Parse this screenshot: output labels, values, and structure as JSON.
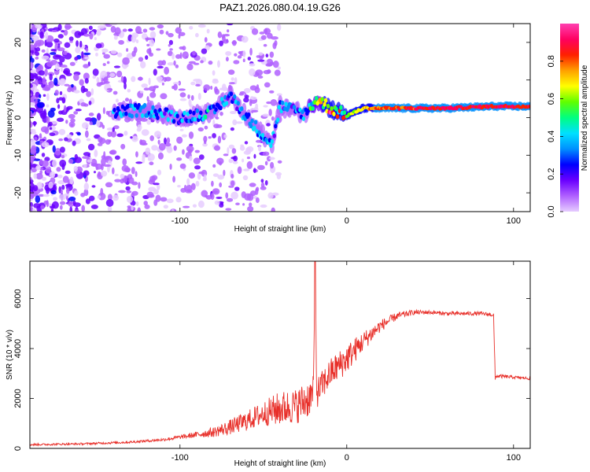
{
  "title": "PAZ1.2026.080.04.19.G26",
  "chart_data": [
    {
      "type": "heatmap",
      "name": "spectrogram",
      "xlabel": "Height of straight line (km)",
      "ylabel": "Frequency (Hz)",
      "xlim": [
        -190,
        110
      ],
      "ylim": [
        -25,
        25
      ],
      "xticks": [
        -100,
        0,
        100
      ],
      "yticks": [
        -20,
        -10,
        0,
        10,
        20
      ],
      "colorbar": {
        "label": "Normalized spectral amplitude",
        "range": [
          0,
          1
        ],
        "ticks": [
          "0.0",
          "0.2",
          "0.4",
          "0.6",
          "0.8"
        ],
        "tick_values": [
          0.0,
          0.2,
          0.4,
          0.6,
          0.8
        ],
        "colors": [
          "#e6ccff",
          "#b060ff",
          "#6a00ff",
          "#0000ff",
          "#0090ff",
          "#00e0ff",
          "#00ff80",
          "#60ff00",
          "#ffff00",
          "#ffa000",
          "#ff2000",
          "#ff0060",
          "#ff40b0"
        ]
      },
      "ridge": [
        {
          "x": -140,
          "f": 1.5,
          "a": 0.3
        },
        {
          "x": -120,
          "f": 2.0,
          "a": 0.35
        },
        {
          "x": -100,
          "f": 0.0,
          "a": 0.3
        },
        {
          "x": -80,
          "f": 1.5,
          "a": 0.35
        },
        {
          "x": -70,
          "f": 6.0,
          "a": 0.3
        },
        {
          "x": -60,
          "f": 0.0,
          "a": 0.35
        },
        {
          "x": -45,
          "f": -7.0,
          "a": 0.3
        },
        {
          "x": -40,
          "f": 3.0,
          "a": 0.3
        },
        {
          "x": -25,
          "f": 1.0,
          "a": 0.3
        },
        {
          "x": -18,
          "f": 5.0,
          "a": 0.5
        },
        {
          "x": -10,
          "f": 2.5,
          "a": 0.7
        },
        {
          "x": 0,
          "f": 0.5,
          "a": 0.6
        },
        {
          "x": 10,
          "f": 2.5,
          "a": 0.8
        },
        {
          "x": 30,
          "f": 2.5,
          "a": 0.9
        },
        {
          "x": 60,
          "f": 2.5,
          "a": 0.95
        },
        {
          "x": 88,
          "f": 3.0,
          "a": 0.95
        },
        {
          "x": 110,
          "f": 3.0,
          "a": 0.95
        }
      ]
    },
    {
      "type": "line",
      "name": "snr",
      "xlabel": "Height of straight line (km)",
      "ylabel": "SNR (10 * v/v)",
      "xlim": [
        -190,
        110
      ],
      "ylim": [
        0,
        7500
      ],
      "xticks": [
        -100,
        0,
        100
      ],
      "yticks": [
        0,
        2000,
        4000,
        6000
      ],
      "color": "#e8302a",
      "series": [
        {
          "name": "SNR",
          "x": [
            -190,
            -160,
            -130,
            -110,
            -100,
            -90,
            -80,
            -70,
            -60,
            -50,
            -40,
            -30,
            -25,
            -20,
            -19,
            -18,
            -10,
            0,
            10,
            20,
            30,
            40,
            50,
            60,
            70,
            80,
            88,
            89,
            90,
            100,
            110
          ],
          "y": [
            150,
            180,
            250,
            350,
            450,
            550,
            650,
            850,
            1100,
            1400,
            1600,
            1700,
            1900,
            2200,
            7500,
            2200,
            3000,
            3600,
            4300,
            4900,
            5300,
            5450,
            5450,
            5400,
            5400,
            5400,
            5350,
            2800,
            2900,
            2850,
            2800
          ],
          "noise": [
            40,
            40,
            50,
            60,
            80,
            120,
            200,
            300,
            400,
            500,
            700,
            700,
            800,
            700,
            0,
            600,
            600,
            600,
            400,
            250,
            150,
            100,
            80,
            80,
            80,
            80,
            80,
            100,
            80,
            60,
            60
          ]
        }
      ]
    }
  ]
}
